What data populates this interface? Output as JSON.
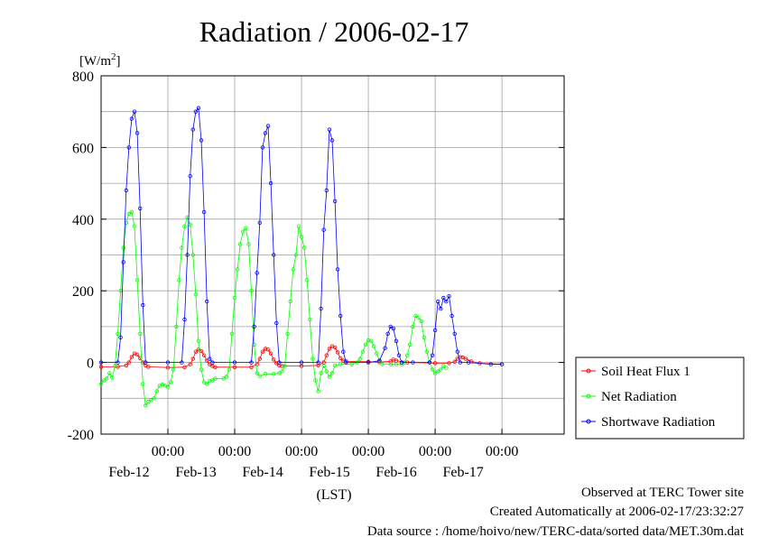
{
  "chart_data": {
    "type": "line",
    "title": "Radiation / 2006-02-17",
    "ylabel": "[W/m²]",
    "ylabel_base": "[W/m",
    "ylabel_sup": "2",
    "ylabel_end": "]",
    "xlabel": "(LST)",
    "ylim": [
      -200,
      800
    ],
    "yticks": [
      -200,
      0,
      200,
      400,
      600,
      800
    ],
    "xlim": [
      0,
      144
    ],
    "xticks": [
      {
        "x": 24,
        "time": "00:00",
        "date": "Feb-12"
      },
      {
        "x": 48,
        "time": "00:00",
        "date": "Feb-13"
      },
      {
        "x": 72,
        "time": "00:00",
        "date": "Feb-14"
      },
      {
        "x": 96,
        "time": "00:00",
        "date": "Feb-15"
      },
      {
        "x": 120,
        "time": "00:00",
        "date": "Feb-16"
      },
      {
        "x": 144,
        "time": "00:00",
        "date": "Feb-17"
      }
    ],
    "legend_position": "right",
    "grid": true,
    "series": [
      {
        "name": "Soil Heat Flux 1",
        "color": "#ff0000",
        "points": [
          [
            0,
            -12
          ],
          [
            6,
            -12
          ],
          [
            9,
            -8
          ],
          [
            10,
            0
          ],
          [
            11,
            15
          ],
          [
            12,
            25
          ],
          [
            13,
            22
          ],
          [
            14,
            12
          ],
          [
            15,
            0
          ],
          [
            16,
            -8
          ],
          [
            17,
            -12
          ],
          [
            24,
            -14
          ],
          [
            30,
            -13
          ],
          [
            32,
            -5
          ],
          [
            33,
            10
          ],
          [
            34,
            30
          ],
          [
            35,
            36
          ],
          [
            36,
            32
          ],
          [
            37,
            20
          ],
          [
            38,
            5
          ],
          [
            39,
            -5
          ],
          [
            40,
            -10
          ],
          [
            41,
            -13
          ],
          [
            48,
            -13
          ],
          [
            54,
            -13
          ],
          [
            56,
            -5
          ],
          [
            57,
            10
          ],
          [
            58,
            30
          ],
          [
            59,
            38
          ],
          [
            60,
            36
          ],
          [
            61,
            25
          ],
          [
            62,
            8
          ],
          [
            63,
            -2
          ],
          [
            64,
            -8
          ],
          [
            65,
            -10
          ],
          [
            72,
            -10
          ],
          [
            78,
            -8
          ],
          [
            80,
            0
          ],
          [
            81,
            20
          ],
          [
            82,
            38
          ],
          [
            83,
            45
          ],
          [
            84,
            42
          ],
          [
            85,
            28
          ],
          [
            86,
            12
          ],
          [
            87,
            5
          ],
          [
            88,
            3
          ],
          [
            96,
            2
          ],
          [
            100,
            1
          ],
          [
            104,
            3
          ],
          [
            105,
            8
          ],
          [
            106,
            5
          ],
          [
            110,
            0
          ],
          [
            120,
            -2
          ],
          [
            125,
            -2
          ],
          [
            127,
            2
          ],
          [
            128,
            10
          ],
          [
            129,
            15
          ],
          [
            130,
            14
          ],
          [
            131,
            10
          ],
          [
            133,
            3
          ],
          [
            136,
            -2
          ],
          [
            144,
            -5
          ]
        ]
      },
      {
        "name": "Net Radiation",
        "color": "#00ff00",
        "points": [
          [
            0,
            -60
          ],
          [
            1,
            -50
          ],
          [
            2,
            -45
          ],
          [
            3,
            -30
          ],
          [
            4,
            -42
          ],
          [
            5,
            -10
          ],
          [
            6,
            80
          ],
          [
            7,
            200
          ],
          [
            8,
            320
          ],
          [
            9,
            390
          ],
          [
            10,
            415
          ],
          [
            11,
            420
          ],
          [
            12,
            380
          ],
          [
            13,
            230
          ],
          [
            14,
            80
          ],
          [
            15,
            -60
          ],
          [
            16,
            -120
          ],
          [
            17,
            -110
          ],
          [
            18,
            -105
          ],
          [
            19,
            -100
          ],
          [
            20,
            -80
          ],
          [
            21,
            -65
          ],
          [
            22,
            -62
          ],
          [
            23,
            -65
          ],
          [
            24,
            -68
          ],
          [
            25,
            -55
          ],
          [
            26,
            -20
          ],
          [
            27,
            100
          ],
          [
            28,
            230
          ],
          [
            29,
            320
          ],
          [
            30,
            380
          ],
          [
            31,
            405
          ],
          [
            32,
            385
          ],
          [
            33,
            300
          ],
          [
            34,
            190
          ],
          [
            35,
            60
          ],
          [
            36,
            -20
          ],
          [
            37,
            -55
          ],
          [
            38,
            -60
          ],
          [
            39,
            -52
          ],
          [
            40,
            -50
          ],
          [
            41,
            -45
          ],
          [
            44,
            -45
          ],
          [
            45,
            -40
          ],
          [
            46,
            -20
          ],
          [
            47,
            80
          ],
          [
            48,
            180
          ],
          [
            49,
            260
          ],
          [
            50,
            330
          ],
          [
            51,
            365
          ],
          [
            52,
            375
          ],
          [
            53,
            330
          ],
          [
            54,
            200
          ],
          [
            55,
            50
          ],
          [
            56,
            -30
          ],
          [
            57,
            -38
          ],
          [
            59,
            -32
          ],
          [
            62,
            -32
          ],
          [
            64,
            -30
          ],
          [
            65,
            -25
          ],
          [
            66,
            -10
          ],
          [
            67,
            80
          ],
          [
            68,
            170
          ],
          [
            69,
            260
          ],
          [
            70,
            300
          ],
          [
            71,
            380
          ],
          [
            72,
            350
          ],
          [
            73,
            320
          ],
          [
            74,
            230
          ],
          [
            75,
            120
          ],
          [
            76,
            10
          ],
          [
            77,
            -50
          ],
          [
            78,
            -80
          ],
          [
            79,
            -30
          ],
          [
            80,
            -10
          ],
          [
            81,
            -25
          ],
          [
            82,
            -40
          ],
          [
            83,
            -30
          ],
          [
            84,
            -8
          ],
          [
            86,
            -5
          ],
          [
            90,
            -5
          ],
          [
            92,
            0
          ],
          [
            93,
            10
          ],
          [
            94,
            30
          ],
          [
            95,
            50
          ],
          [
            96,
            62
          ],
          [
            97,
            60
          ],
          [
            98,
            45
          ],
          [
            99,
            25
          ],
          [
            100,
            5
          ],
          [
            101,
            -5
          ],
          [
            104,
            -5
          ],
          [
            106,
            -5
          ],
          [
            108,
            -5
          ],
          [
            109,
            0
          ],
          [
            110,
            20
          ],
          [
            111,
            50
          ],
          [
            112,
            100
          ],
          [
            113,
            130
          ],
          [
            114,
            125
          ],
          [
            115,
            115
          ],
          [
            116,
            70
          ],
          [
            117,
            30
          ],
          [
            118,
            0
          ],
          [
            119,
            -20
          ],
          [
            120,
            -30
          ],
          [
            121,
            -25
          ],
          [
            122,
            -20
          ],
          [
            123,
            -10
          ],
          [
            124,
            -15
          ]
        ]
      },
      {
        "name": "Shortwave Radiation",
        "color": "#0000ff",
        "points": [
          [
            0,
            0
          ],
          [
            6,
            0
          ],
          [
            7,
            70
          ],
          [
            8,
            280
          ],
          [
            9,
            480
          ],
          [
            10,
            600
          ],
          [
            11,
            680
          ],
          [
            12,
            700
          ],
          [
            13,
            640
          ],
          [
            14,
            430
          ],
          [
            15,
            160
          ],
          [
            16,
            0
          ],
          [
            24,
            0
          ],
          [
            29,
            0
          ],
          [
            30,
            120
          ],
          [
            31,
            300
          ],
          [
            32,
            520
          ],
          [
            33,
            650
          ],
          [
            34,
            700
          ],
          [
            35,
            710
          ],
          [
            36,
            620
          ],
          [
            37,
            420
          ],
          [
            38,
            170
          ],
          [
            39,
            10
          ],
          [
            40,
            0
          ],
          [
            48,
            0
          ],
          [
            54,
            0
          ],
          [
            55,
            100
          ],
          [
            56,
            250
          ],
          [
            57,
            390
          ],
          [
            58,
            600
          ],
          [
            59,
            640
          ],
          [
            60,
            660
          ],
          [
            61,
            500
          ],
          [
            62,
            300
          ],
          [
            63,
            110
          ],
          [
            64,
            0
          ],
          [
            72,
            0
          ],
          [
            78,
            0
          ],
          [
            79,
            150
          ],
          [
            80,
            370
          ],
          [
            81,
            480
          ],
          [
            82,
            650
          ],
          [
            83,
            620
          ],
          [
            84,
            450
          ],
          [
            85,
            260
          ],
          [
            86,
            130
          ],
          [
            87,
            30
          ],
          [
            88,
            0
          ],
          [
            96,
            0
          ],
          [
            100,
            5
          ],
          [
            102,
            40
          ],
          [
            103,
            80
          ],
          [
            104,
            100
          ],
          [
            105,
            95
          ],
          [
            106,
            60
          ],
          [
            107,
            20
          ],
          [
            108,
            0
          ],
          [
            112,
            0
          ],
          [
            118,
            0
          ],
          [
            119,
            20
          ],
          [
            120,
            90
          ],
          [
            121,
            170
          ],
          [
            122,
            150
          ],
          [
            123,
            180
          ],
          [
            124,
            170
          ],
          [
            125,
            185
          ],
          [
            126,
            130
          ],
          [
            127,
            80
          ],
          [
            128,
            30
          ],
          [
            129,
            0
          ],
          [
            132,
            0
          ],
          [
            140,
            -5
          ],
          [
            144,
            -5
          ]
        ]
      }
    ]
  },
  "footer": {
    "line1": "Observed at TERC Tower site",
    "line2": "Created Automatically at 2006-02-17/23:32:27",
    "line3": "Data source : /home/hoivo/new/TERC-data/sorted  data/MET.30m.dat"
  }
}
